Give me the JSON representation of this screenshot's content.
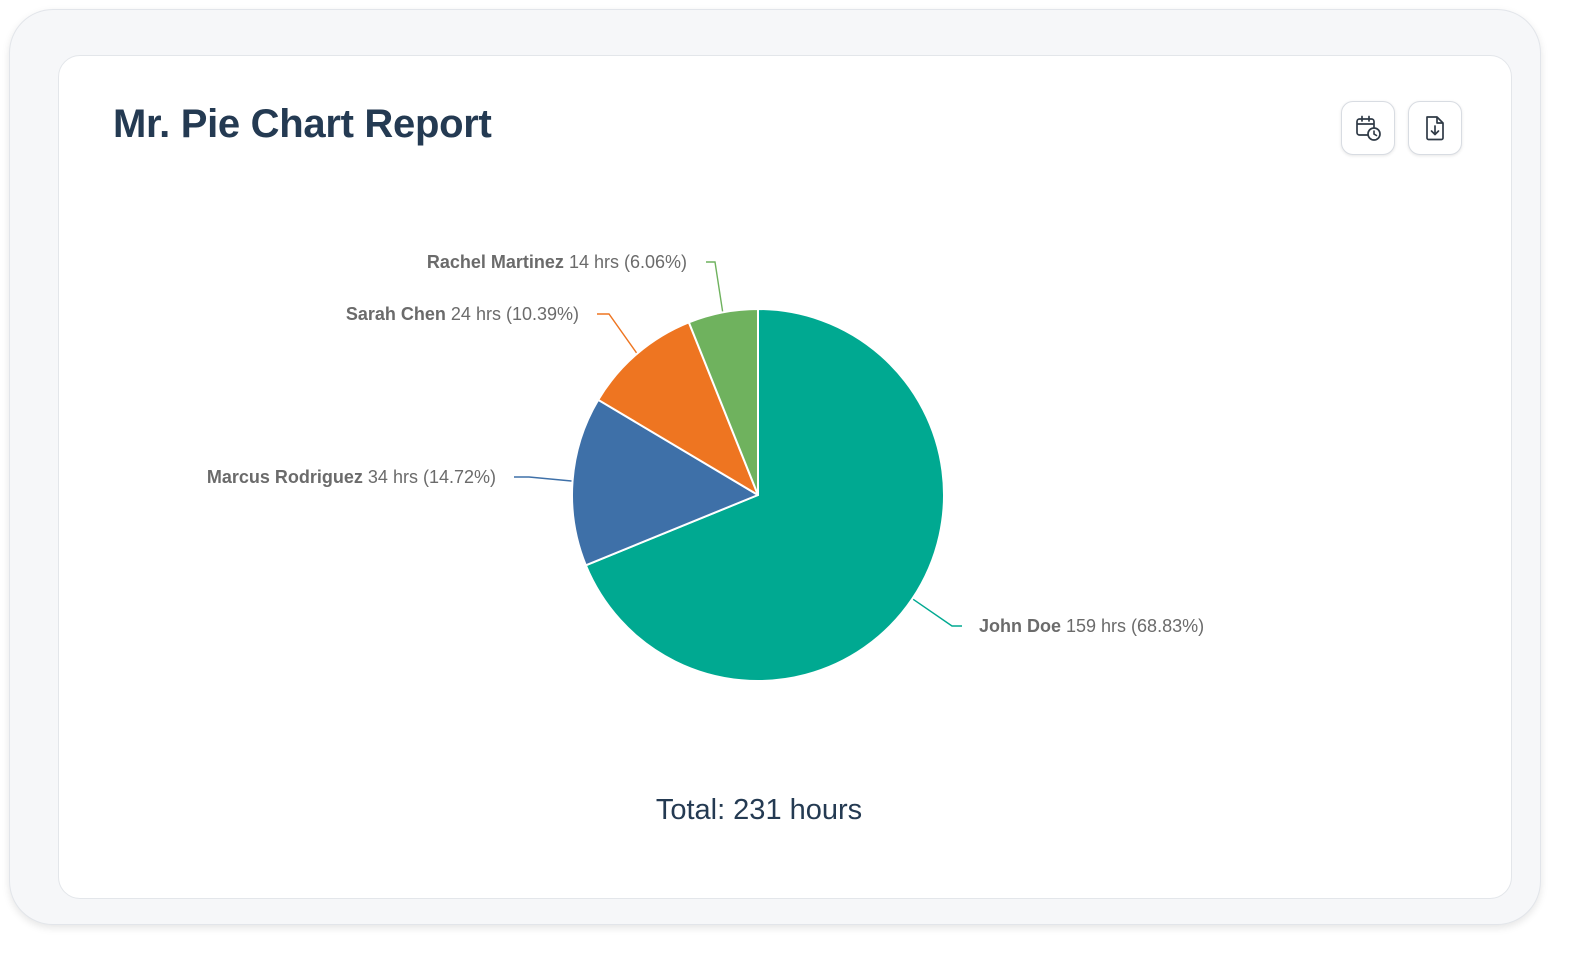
{
  "header": {
    "title": "Mr. Pie Chart Report"
  },
  "toolbar": {
    "schedule_icon": "calendar-clock-icon",
    "download_icon": "file-download-icon"
  },
  "chart_data": {
    "type": "pie",
    "unit": "hrs",
    "slices": [
      {
        "name": "John Doe",
        "value": 159,
        "percent": "68.83%",
        "color": "#00a991"
      },
      {
        "name": "Marcus Rodriguez",
        "value": 34,
        "percent": "14.72%",
        "color": "#3e70a8"
      },
      {
        "name": "Sarah Chen",
        "value": 24,
        "percent": "10.39%",
        "color": "#ee7521"
      },
      {
        "name": "Rachel Martinez",
        "value": 14,
        "percent": "6.06%",
        "color": "#6fb25e"
      }
    ],
    "total_label": "Total: 231 hours"
  },
  "colors": {
    "title": "#243a52",
    "label_text": "#6b6b6b"
  }
}
